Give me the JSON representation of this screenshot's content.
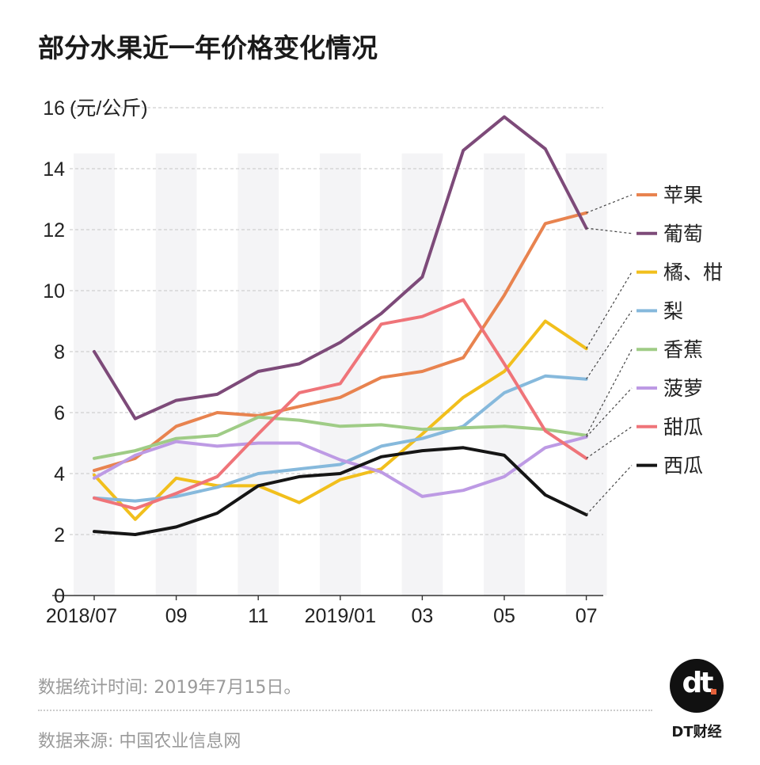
{
  "title": "部分水果近一年价格变化情况",
  "notes": {
    "stat_time": "数据统计时间: 2019年7月15日。",
    "source": "数据来源: 中国农业信息网"
  },
  "brand": {
    "logo_text": "dt",
    "name": "DT财经",
    "accent_color": "#e4613b"
  },
  "chart_data": {
    "type": "line",
    "title": "部分水果近一年价格变化情况",
    "unit_label": "(元/公斤)",
    "x": [
      "2018/07",
      "2018/08",
      "2018/09",
      "2018/10",
      "2018/11",
      "2018/12",
      "2019/01",
      "2019/02",
      "2019/03",
      "2019/04",
      "2019/05",
      "2019/06",
      "2019/07"
    ],
    "x_tick_labels": [
      {
        "index": 0,
        "label": "2018/07"
      },
      {
        "index": 2,
        "label": "09"
      },
      {
        "index": 4,
        "label": "11"
      },
      {
        "index": 6,
        "label": "2019/01"
      },
      {
        "index": 8,
        "label": "03"
      },
      {
        "index": 10,
        "label": "05"
      },
      {
        "index": 12,
        "label": "07"
      }
    ],
    "y_ticks": [
      0,
      2,
      4,
      6,
      8,
      10,
      12,
      14,
      16
    ],
    "ylim": [
      0,
      16
    ],
    "grid": "horizontal dashed",
    "legend_position": "right",
    "series": [
      {
        "name": "苹果",
        "color": "#e8834f",
        "values": [
          4.1,
          4.5,
          5.55,
          6.0,
          5.9,
          6.2,
          6.5,
          7.15,
          7.35,
          7.8,
          9.85,
          12.2,
          12.55
        ]
      },
      {
        "name": "葡萄",
        "color": "#7d4a79",
        "values": [
          8.0,
          5.8,
          6.4,
          6.6,
          7.35,
          7.6,
          8.3,
          9.25,
          10.45,
          14.6,
          15.7,
          14.65,
          12.05
        ]
      },
      {
        "name": "橘、柑",
        "color": "#f1bf1c",
        "values": [
          3.95,
          2.5,
          3.85,
          3.6,
          3.6,
          3.05,
          3.8,
          4.15,
          5.3,
          6.5,
          7.35,
          9.0,
          8.1
        ]
      },
      {
        "name": "梨",
        "color": "#86b9dc",
        "values": [
          3.2,
          3.1,
          3.25,
          3.55,
          4.0,
          4.15,
          4.3,
          4.9,
          5.15,
          5.55,
          6.65,
          7.2,
          7.1
        ]
      },
      {
        "name": "香蕉",
        "color": "#9fcc86",
        "values": [
          4.5,
          4.75,
          5.15,
          5.25,
          5.85,
          5.75,
          5.55,
          5.6,
          5.45,
          5.5,
          5.55,
          5.45,
          5.25
        ]
      },
      {
        "name": "菠萝",
        "color": "#bd9ae4",
        "values": [
          3.85,
          4.6,
          5.05,
          4.9,
          5.0,
          5.0,
          4.45,
          4.05,
          3.25,
          3.45,
          3.9,
          4.85,
          5.2
        ]
      },
      {
        "name": "甜瓜",
        "color": "#ef7479",
        "values": [
          3.2,
          2.85,
          3.35,
          3.9,
          5.3,
          6.65,
          6.95,
          8.9,
          9.15,
          9.7,
          7.6,
          5.4,
          4.5
        ]
      },
      {
        "name": "西瓜",
        "color": "#151515",
        "values": [
          2.1,
          2.0,
          2.25,
          2.7,
          3.6,
          3.9,
          4.0,
          4.55,
          4.75,
          4.85,
          4.6,
          3.3,
          2.65
        ]
      }
    ]
  }
}
